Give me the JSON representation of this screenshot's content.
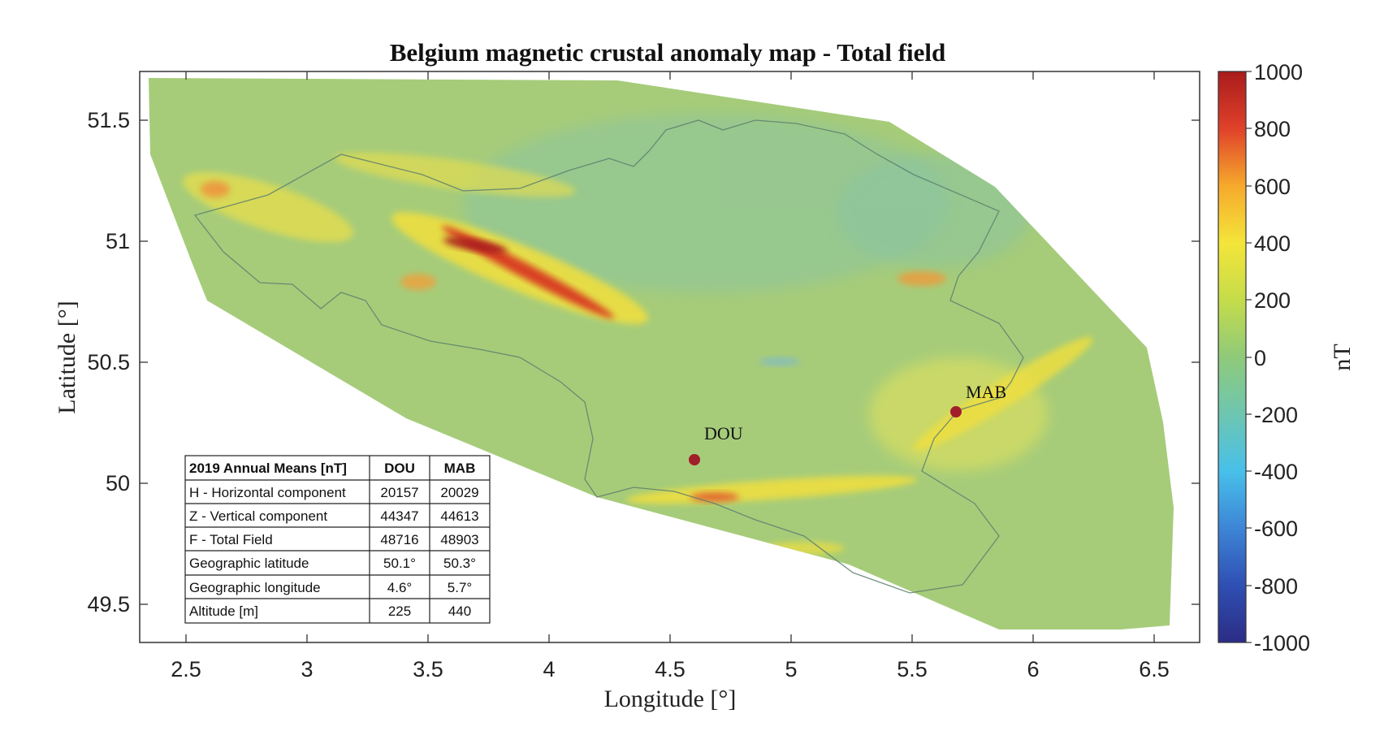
{
  "chart_data": {
    "type": "heatmap",
    "title": "Belgium magnetic crustal anomaly map - Total field",
    "xlabel": "Longitude [°]",
    "ylabel": "Latitude [°]",
    "xlim": [
      2.31,
      6.68
    ],
    "ylim": [
      49.35,
      51.7
    ],
    "xticks": [
      "2.5",
      "3",
      "3.5",
      "4",
      "4.5",
      "5",
      "5.5",
      "6",
      "6.5"
    ],
    "yticks": [
      "49.5",
      "50",
      "50.5",
      "51",
      "51.5"
    ],
    "colorbar": {
      "label": "nT",
      "range": [
        -1000,
        1000
      ],
      "ticks": [
        "1000",
        "800",
        "600",
        "400",
        "200",
        "0",
        "-200",
        "-400",
        "-600",
        "-800",
        "-1000"
      ],
      "colormap": [
        "#2b2d85",
        "#2f4fb3",
        "#3d85d6",
        "#48c0ea",
        "#6ec6b0",
        "#8fca7a",
        "#c5dc4a",
        "#f4e53a",
        "#f6a92c",
        "#e0412a",
        "#a91c1c"
      ]
    },
    "stations": [
      {
        "name": "DOU",
        "lon": 4.6,
        "lat": 50.1
      },
      {
        "name": "MAB",
        "lon": 5.7,
        "lat": 50.3
      }
    ],
    "table": {
      "header": [
        "2019 Annual Means [nT]",
        "DOU",
        "MAB"
      ],
      "rows": [
        [
          "H - Horizontal component",
          "20157",
          "20029"
        ],
        [
          "Z - Vertical component",
          "44347",
          "44613"
        ],
        [
          "F - Total Field",
          "48716",
          "48903"
        ],
        [
          "Geographic latitude",
          "50.1°",
          "50.3°"
        ],
        [
          "Geographic longitude",
          "4.6°",
          "5.7°"
        ],
        [
          "Altitude [m]",
          "225",
          "440"
        ]
      ]
    }
  }
}
